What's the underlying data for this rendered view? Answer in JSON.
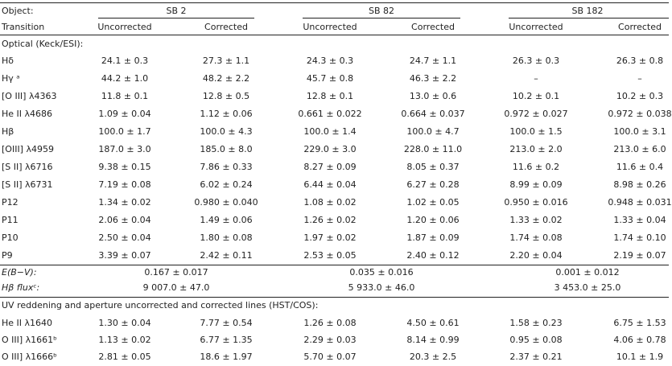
{
  "header": {
    "object_label": "Object:",
    "transition_label": "Transition",
    "groups": [
      "SB 2",
      "SB 82",
      "SB 182"
    ],
    "subheaders": [
      "Uncorrected",
      "Corrected",
      "Uncorrected",
      "Corrected",
      "Uncorrected",
      "Corrected"
    ]
  },
  "section_optical": "Optical (Keck/ESI):",
  "optical_rows": [
    {
      "label": "Hδ",
      "values": [
        "24.1 ± 0.3",
        "27.3 ± 1.1",
        "24.3 ± 0.3",
        "24.7 ± 1.1",
        "26.3 ± 0.3",
        "26.3 ± 0.8"
      ]
    },
    {
      "label": "Hγ ᵃ",
      "values": [
        "44.2 ± 1.0",
        "48.2 ± 2.2",
        "45.7 ± 0.8",
        "46.3 ± 2.2",
        "–",
        "–"
      ]
    },
    {
      "label": "[O III] λ4363",
      "values": [
        "11.8 ± 0.1",
        "12.8 ± 0.5",
        "12.8 ± 0.1",
        "13.0 ± 0.6",
        "10.2 ± 0.1",
        "10.2 ± 0.3"
      ]
    },
    {
      "label": "He II λ4686",
      "values": [
        "1.09 ± 0.04",
        "1.12 ± 0.06",
        "0.661 ± 0.022",
        "0.664 ± 0.037",
        "0.972 ± 0.027",
        "0.972 ± 0.038"
      ]
    },
    {
      "label": "Hβ",
      "values": [
        "100.0 ± 1.7",
        "100.0 ± 4.3",
        "100.0 ± 1.4",
        "100.0 ± 4.7",
        "100.0 ± 1.5",
        "100.0 ± 3.1"
      ]
    },
    {
      "label": "[OIII] λ4959",
      "values": [
        "187.0 ± 3.0",
        "185.0 ± 8.0",
        "229.0 ± 3.0",
        "228.0 ± 11.0",
        "213.0 ± 2.0",
        "213.0 ± 6.0"
      ]
    },
    {
      "label": "[S II] λ6716",
      "values": [
        "9.38 ± 0.15",
        "7.86 ± 0.33",
        "8.27 ± 0.09",
        "8.05 ± 0.37",
        "11.6 ± 0.2",
        "11.6 ± 0.4"
      ]
    },
    {
      "label": "[S II] λ6731",
      "values": [
        "7.19 ± 0.08",
        "6.02 ± 0.24",
        "6.44 ± 0.04",
        "6.27 ± 0.28",
        "8.99 ± 0.09",
        "8.98 ± 0.26"
      ]
    },
    {
      "label": "P12",
      "values": [
        "1.34 ± 0.02",
        "0.980 ± 0.040",
        "1.08 ± 0.02",
        "1.02 ± 0.05",
        "0.950 ± 0.016",
        "0.948 ± 0.031"
      ]
    },
    {
      "label": "P11",
      "values": [
        "2.06 ± 0.04",
        "1.49 ± 0.06",
        "1.26 ± 0.02",
        "1.20 ± 0.06",
        "1.33 ± 0.02",
        "1.33 ± 0.04"
      ]
    },
    {
      "label": "P10",
      "values": [
        "2.50 ± 0.04",
        "1.80 ± 0.08",
        "1.97 ± 0.02",
        "1.87 ± 0.09",
        "1.74 ± 0.08",
        "1.74 ± 0.10"
      ]
    },
    {
      "label": "P9",
      "values": [
        "3.39 ± 0.07",
        "2.42 ± 0.11",
        "2.53 ± 0.05",
        "2.40 ± 0.12",
        "2.20 ± 0.04",
        "2.19 ± 0.07"
      ]
    }
  ],
  "ebv": {
    "label": "E(B−V):",
    "values": [
      "0.167 ± 0.017",
      "0.035 ± 0.016",
      "0.001 ± 0.012"
    ]
  },
  "hbflux": {
    "label": "Hβ fluxᶜ:",
    "values": [
      "9 007.0 ± 47.0",
      "5 933.0 ± 46.0",
      "3 453.0 ± 25.0"
    ]
  },
  "section_uv": "UV reddening and aperture uncorrected and corrected lines (HST/COS):",
  "uv_rows": [
    {
      "label": "He II λ1640",
      "values": [
        "1.30 ± 0.04",
        "7.77 ± 0.54",
        "1.26 ± 0.08",
        "4.50 ± 0.61",
        "1.58 ± 0.23",
        "6.75 ± 1.53"
      ]
    },
    {
      "label": "O III] λ1661ᵇ",
      "values": [
        "1.13 ± 0.02",
        "6.77 ± 1.35",
        "2.29 ± 0.03",
        "8.14 ± 0.99",
        "0.95 ± 0.08",
        "4.06 ± 0.78"
      ]
    },
    {
      "label": "O III] λ1666ᵇ",
      "values": [
        "2.81 ± 0.05",
        "18.6 ± 1.97",
        "5.70 ± 0.07",
        "20.3 ± 2.5",
        "2.37 ± 0.21",
        "10.1 ± 1.9"
      ]
    }
  ]
}
